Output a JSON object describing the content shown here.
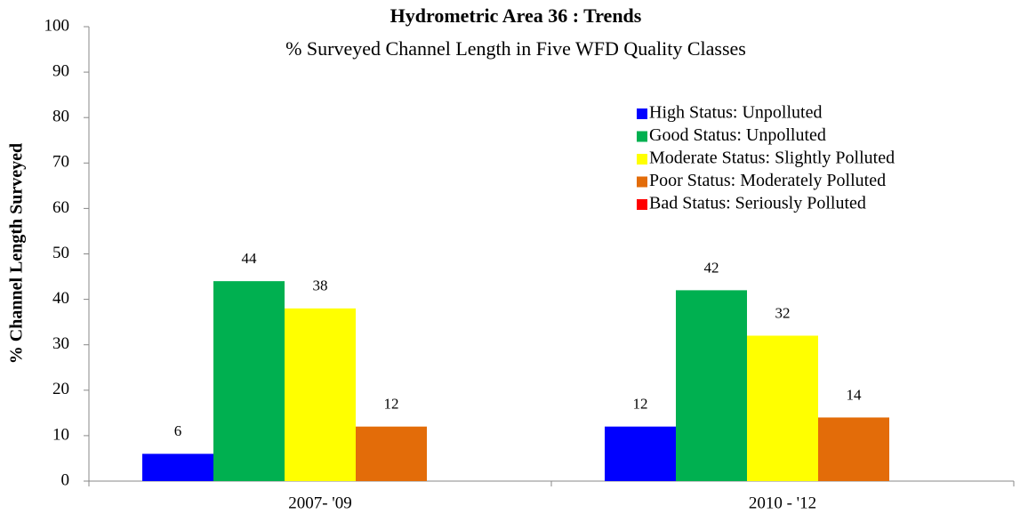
{
  "chart_data": {
    "type": "bar",
    "title": "Hydrometric Area 36 : Trends",
    "subtitle": "% Surveyed Channel Length in Five WFD Quality Classes",
    "ylabel": "% Channel Length Surveyed",
    "categories": [
      "2007- '09",
      "2010 - '12"
    ],
    "series": [
      {
        "name": "High Status: Unpolluted",
        "color": "#0000ff",
        "values": [
          6,
          12
        ]
      },
      {
        "name": "Good Status: Unpolluted",
        "color": "#00b050",
        "values": [
          44,
          42
        ]
      },
      {
        "name": "Moderate Status: Slightly Polluted",
        "color": "#ffff00",
        "values": [
          38,
          32
        ]
      },
      {
        "name": "Poor Status: Moderately Polluted",
        "color": "#e36c09",
        "values": [
          12,
          14
        ]
      },
      {
        "name": "Bad Status: Seriously Polluted",
        "color": "#ff0000",
        "values": [
          0,
          0
        ],
        "value_labels": [
          null,
          null
        ]
      }
    ],
    "ylim": [
      0,
      100
    ],
    "yticks": [
      0,
      10,
      20,
      30,
      40,
      50,
      60,
      70,
      80,
      90,
      100
    ],
    "legend": "upper right",
    "grid": false
  }
}
